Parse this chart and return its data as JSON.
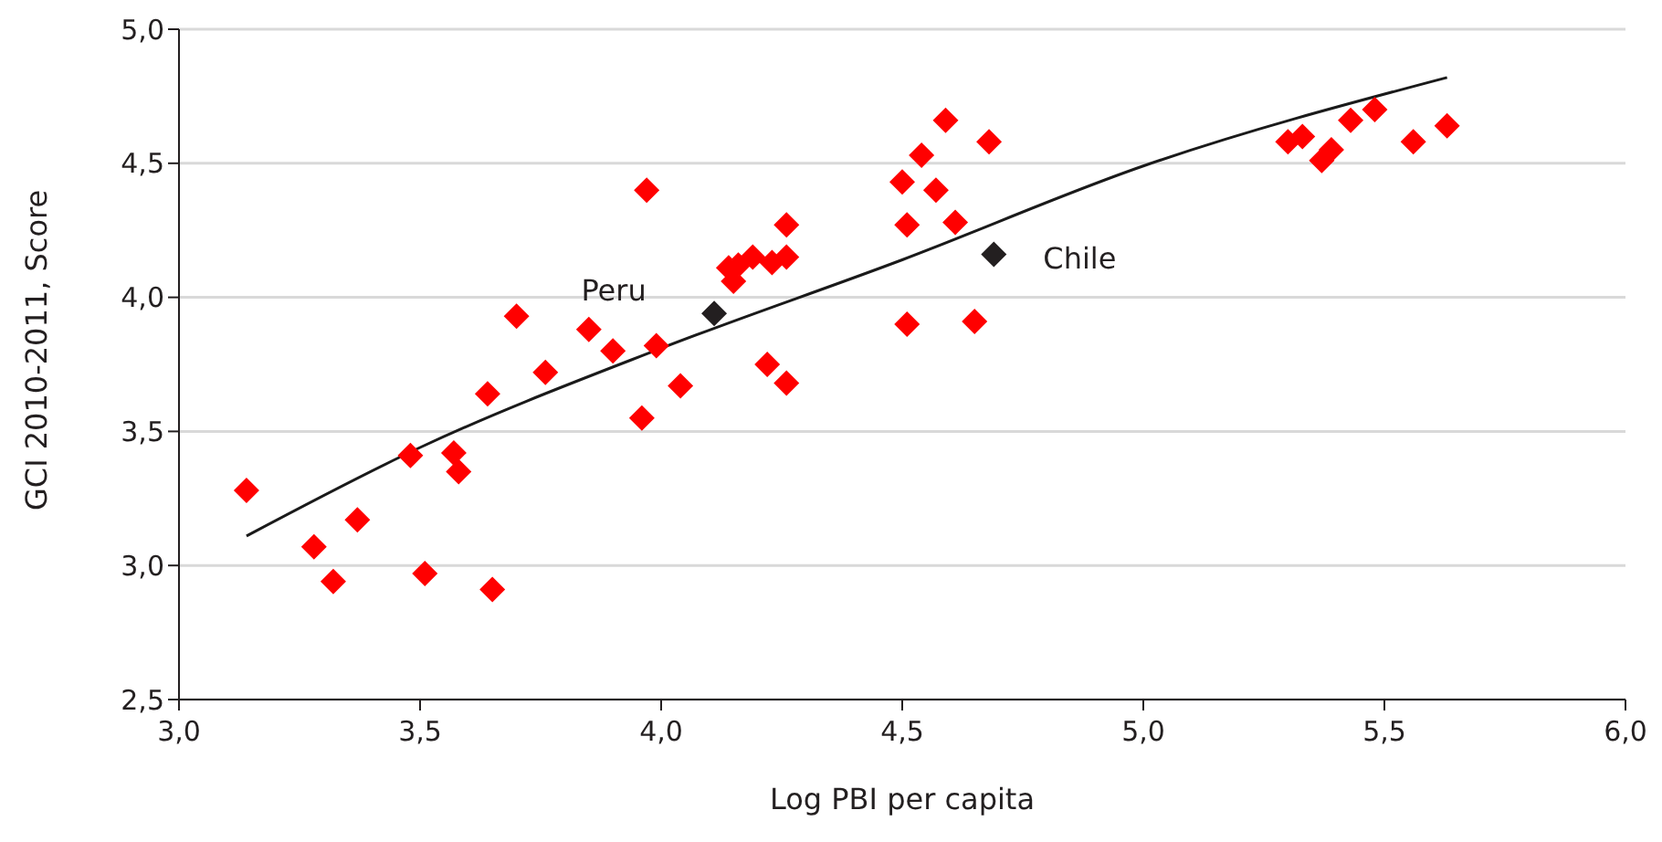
{
  "chart_data": {
    "type": "scatter",
    "xlabel": "Log PBI per capita",
    "ylabel": "GCI 2010-2011, Score",
    "xlim": [
      3,
      6
    ],
    "xticks": [
      {
        "value": 3,
        "label": "3,0"
      },
      {
        "value": 3.5,
        "label": "3,5"
      },
      {
        "value": 4,
        "label": "4,0"
      },
      {
        "value": 4.5,
        "label": "4,5"
      },
      {
        "value": 5,
        "label": "5,0"
      },
      {
        "value": 5.5,
        "label": "5,5"
      },
      {
        "value": 6,
        "label": "6,0"
      }
    ],
    "ylim": [
      2.5,
      5
    ],
    "yticks": [
      {
        "value": 2.5,
        "label": "2,5"
      },
      {
        "value": 3,
        "label": "3,0"
      },
      {
        "value": 3.5,
        "label": "3,5"
      },
      {
        "value": 4,
        "label": "4,0"
      },
      {
        "value": 4.5,
        "label": "4,5"
      },
      {
        "value": 5,
        "label": "5,0"
      }
    ],
    "grid": "y",
    "marker": "diamond",
    "series": [
      {
        "color": "#ff0000",
        "x": [
          3.14,
          3.28,
          3.32,
          3.37,
          3.48,
          3.51,
          3.57,
          3.58,
          3.64,
          3.65,
          3.7,
          3.76,
          3.85,
          3.9,
          3.96,
          3.97,
          3.99,
          4.04,
          4.14,
          4.15,
          4.16,
          4.19,
          4.23,
          4.26,
          4.26,
          4.22,
          4.26,
          4.5,
          4.51,
          4.51,
          4.54,
          4.57,
          4.59,
          4.61,
          4.65,
          4.68,
          5.3,
          5.33,
          5.37,
          5.39,
          5.43,
          5.48,
          5.56,
          5.63
        ],
        "values": [
          3.28,
          3.07,
          2.94,
          3.17,
          3.41,
          2.97,
          3.42,
          3.35,
          3.64,
          2.91,
          3.93,
          3.72,
          3.88,
          3.8,
          3.55,
          4.4,
          3.82,
          3.67,
          4.11,
          4.06,
          4.12,
          4.15,
          4.13,
          4.15,
          4.27,
          3.75,
          3.68,
          4.43,
          4.27,
          3.9,
          4.53,
          4.4,
          4.66,
          4.28,
          3.91,
          4.58,
          4.58,
          4.6,
          4.51,
          4.55,
          4.66,
          4.7,
          4.58,
          4.64
        ]
      },
      {
        "color": "#231f20",
        "x": [
          4.11,
          4.69
        ],
        "values": [
          3.94,
          4.16
        ]
      },
      {
        "type": "line",
        "marker": "none",
        "color": "#1a1a1a",
        "x": [
          3.14,
          3.5,
          4.0,
          4.5,
          5.0,
          5.63
        ],
        "values": [
          3.11,
          3.44,
          3.81,
          4.14,
          4.49,
          4.82
        ]
      }
    ],
    "annotations": [
      {
        "text": "Peru",
        "x": 4.11,
        "y": 3.94
      },
      {
        "text": "Chile",
        "x": 4.69,
        "y": 4.16
      }
    ]
  }
}
